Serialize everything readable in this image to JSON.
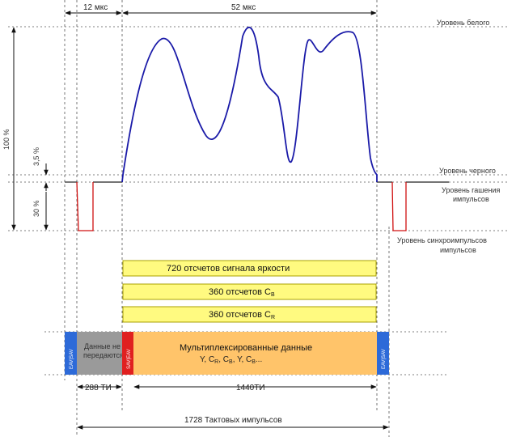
{
  "timing": {
    "blank_time": "12 мкс",
    "active_time": "52 мкс"
  },
  "levels": {
    "white": "Уровень белого",
    "black": "Уровень черного",
    "blanking": "Уровень гашения импульсов",
    "sync": "Уровень синхроимпульсов импульсов"
  },
  "percent": {
    "full": "100 %",
    "setup": "3,5 %",
    "sync": "30 %"
  },
  "bars": {
    "luma": "720   отсчетов сигнала яркости",
    "cb": "360 отсчетов C",
    "cb_sub": "B",
    "cr": "360 отсчетов C",
    "cr_sub": "R"
  },
  "stream": {
    "eav": "EAV|SAV",
    "sav": "SAV|EAV",
    "not_sent": [
      "Данные не",
      "передаются"
    ],
    "mux_title": "Мультиплексированные данные",
    "mux_seq": "Y, CR, CB, Y, CB..."
  },
  "counts": {
    "blank_ti": "288 ТИ",
    "active_ti": "1440ТИ",
    "total": "1728  Тактовых импульсов"
  },
  "colors": {
    "signal": "#1a1aa8",
    "sync_pulse": "#d01010",
    "yellow_bar": "#fffa80",
    "yellow_border": "#a8a000",
    "orange": "#ffc46a",
    "gray": "#9a9a9a",
    "blue": "#2d6ad8",
    "red": "#e02020"
  }
}
